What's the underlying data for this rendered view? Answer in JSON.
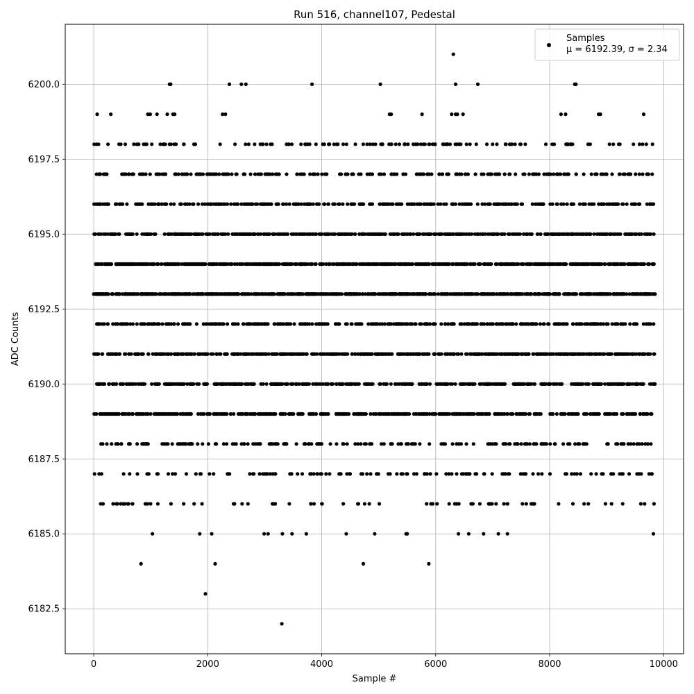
{
  "chart_data": {
    "type": "scatter",
    "title": "Run 516, channel107, Pedestal",
    "xlabel": "Sample #",
    "ylabel": "ADC Counts",
    "xlim": [
      -500,
      10350
    ],
    "ylim": [
      6181.0,
      6202.0
    ],
    "xticks": [
      0,
      2000,
      4000,
      6000,
      8000,
      10000
    ],
    "xtick_labels": [
      "0",
      "2000",
      "4000",
      "6000",
      "8000",
      "10000"
    ],
    "yticks": [
      6182.5,
      6185.0,
      6187.5,
      6190.0,
      6192.5,
      6195.0,
      6197.5,
      6200.0
    ],
    "ytick_labels": [
      "6182.5",
      "6185.0",
      "6187.5",
      "6190.0",
      "6192.5",
      "6195.0",
      "6197.5",
      "6200.0"
    ],
    "grid": true,
    "legend": {
      "position": "top-right",
      "entries": [
        {
          "label": "Samples",
          "stats": "μ = 6192.39, σ = 2.34",
          "color": "#000000",
          "marker": "circle"
        }
      ]
    },
    "series": [
      {
        "name": "Samples",
        "color": "#000000",
        "points": [
          [
            830,
            6184
          ],
          [
            2130,
            6184
          ],
          [
            4730,
            6184
          ],
          [
            5880,
            6184
          ],
          [
            1960,
            6183
          ],
          [
            3300,
            6182
          ],
          [
            6310,
            6201
          ],
          [
            1330,
            6200
          ],
          [
            1350,
            6200
          ],
          [
            2380,
            6200
          ],
          [
            2590,
            6200
          ],
          [
            2670,
            6200
          ],
          [
            3830,
            6200
          ],
          [
            5030,
            6200
          ],
          [
            6350,
            6200
          ],
          [
            6740,
            6200
          ],
          [
            8440,
            6200
          ],
          [
            8460,
            6200
          ],
          [
            1030,
            6185
          ],
          [
            1860,
            6185
          ],
          [
            2070,
            6185
          ],
          [
            2990,
            6185
          ],
          [
            3060,
            6185
          ],
          [
            3310,
            6185
          ],
          [
            3480,
            6185
          ],
          [
            3730,
            6185
          ],
          [
            4430,
            6185
          ],
          [
            4930,
            6185
          ],
          [
            5480,
            6185
          ],
          [
            5500,
            6185
          ],
          [
            6400,
            6185
          ],
          [
            6580,
            6185
          ],
          [
            6840,
            6185
          ],
          [
            7100,
            6185
          ],
          [
            7260,
            6185
          ],
          [
            9820,
            6185
          ],
          [
            60,
            6199
          ],
          [
            300,
            6199
          ],
          [
            950,
            6199
          ],
          [
            990,
            6199
          ],
          [
            1110,
            6199
          ],
          [
            1290,
            6199
          ],
          [
            1390,
            6199
          ],
          [
            1420,
            6199
          ],
          [
            2260,
            6199
          ],
          [
            2310,
            6199
          ],
          [
            5190,
            6199
          ],
          [
            5220,
            6199
          ],
          [
            5760,
            6199
          ],
          [
            6280,
            6199
          ],
          [
            6350,
            6199
          ],
          [
            6380,
            6199
          ],
          [
            6480,
            6199
          ],
          [
            8200,
            6199
          ],
          [
            8280,
            6199
          ],
          [
            8860,
            6199
          ],
          [
            8890,
            6199
          ],
          [
            9650,
            6199
          ]
        ],
        "rows": [
          {
            "y": 6198,
            "n": 140,
            "seed": 11
          },
          {
            "y": 6197,
            "n": 230,
            "seed": 23
          },
          {
            "y": 6196,
            "n": 330,
            "seed": 37
          },
          {
            "y": 6195,
            "n": 480,
            "seed": 41
          },
          {
            "y": 6194,
            "n": 620,
            "seed": 53
          },
          {
            "y": 6193,
            "n": 720,
            "seed": 67
          },
          {
            "y": 6192,
            "n": 360,
            "seed": 71
          },
          {
            "y": 6191,
            "n": 560,
            "seed": 83
          },
          {
            "y": 6190,
            "n": 430,
            "seed": 97
          },
          {
            "y": 6189,
            "n": 500,
            "seed": 101
          },
          {
            "y": 6188,
            "n": 190,
            "seed": 113
          },
          {
            "y": 6187,
            "n": 130,
            "seed": 127
          },
          {
            "y": 6186,
            "n": 75,
            "seed": 131
          }
        ],
        "x_range": [
          0,
          9850
        ]
      }
    ]
  }
}
